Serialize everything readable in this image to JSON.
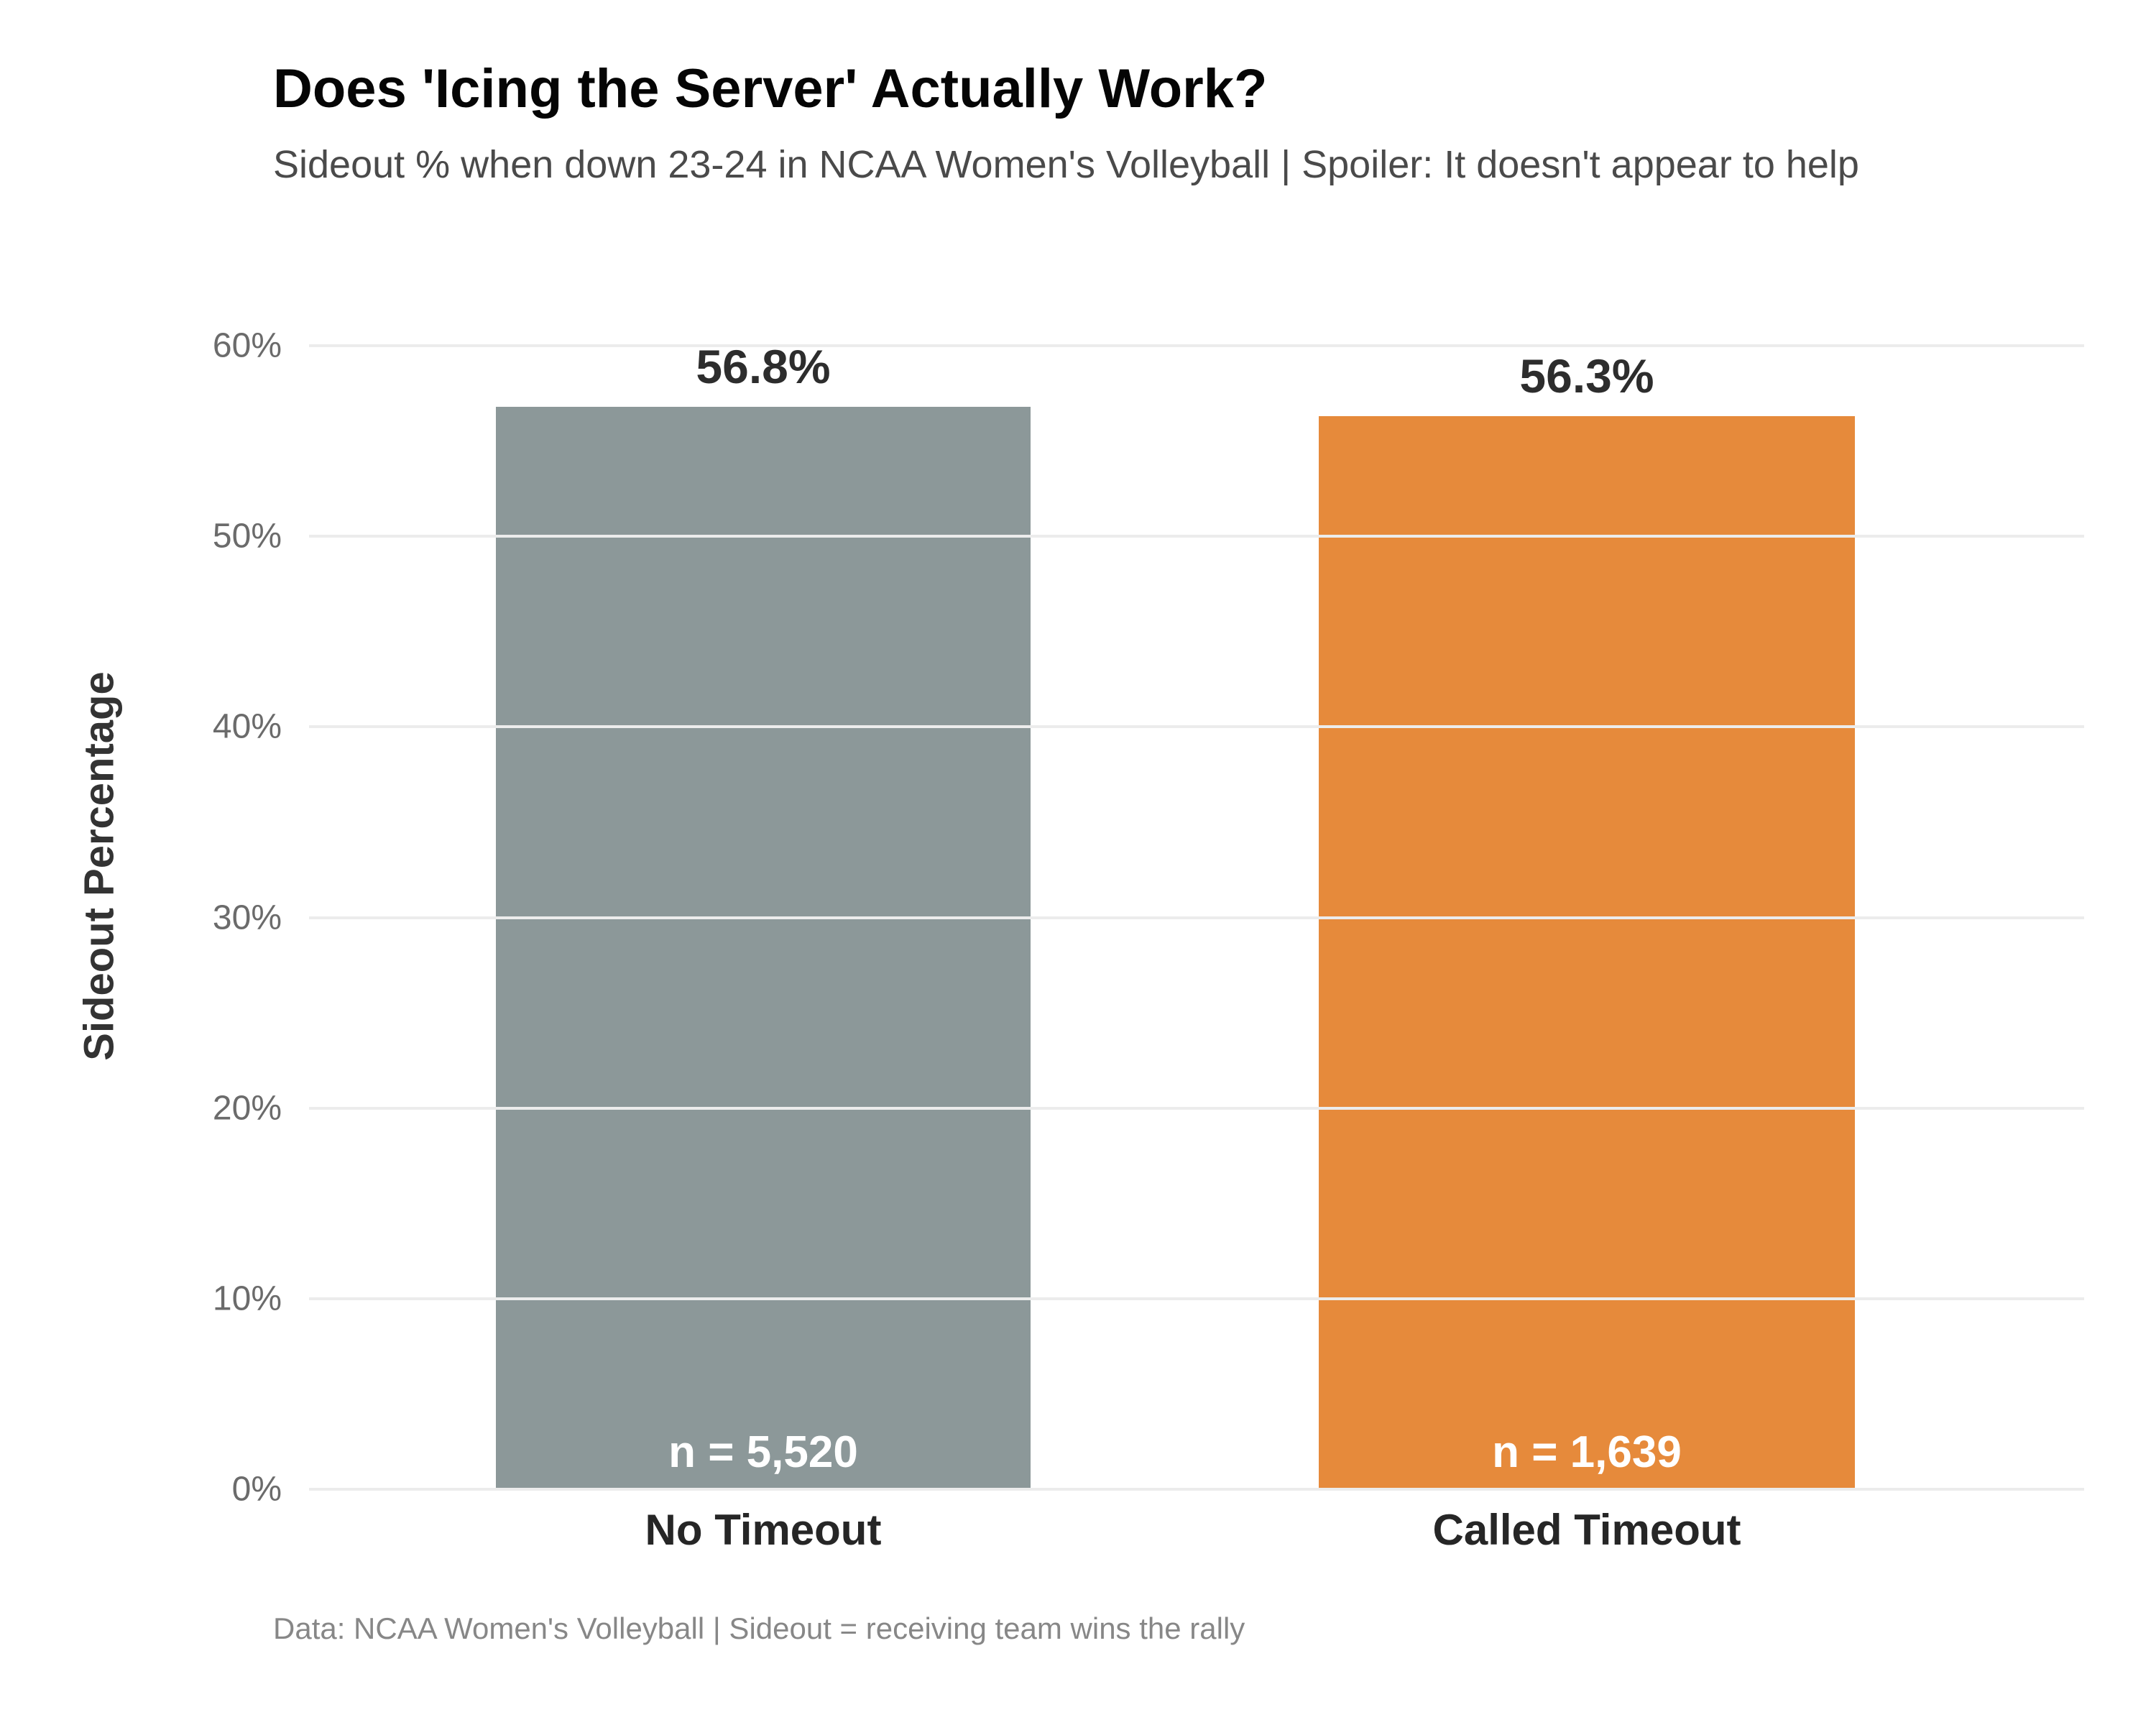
{
  "header": {
    "title": "Does 'Icing the Server' Actually Work?",
    "subtitle": "Sideout % when down 23-24 in NCAA Women's Volleyball | Spoiler: It doesn't appear to help"
  },
  "chart_data": {
    "type": "bar",
    "title": "Does 'Icing the Server' Actually Work?",
    "subtitle": "Sideout % when down 23-24 in NCAA Women's Volleyball | Spoiler: It doesn't appear to help",
    "categories": [
      "No Timeout",
      "Called Timeout"
    ],
    "values": [
      56.8,
      56.3
    ],
    "value_labels": [
      "56.8%",
      "56.3%"
    ],
    "sample_sizes": [
      5520,
      1639
    ],
    "n_labels": [
      "n = 5,520",
      "n = 1,639"
    ],
    "bar_colors": [
      "#8C9899",
      "#E68A3B"
    ],
    "xlabel": "",
    "ylabel": "Sideout Percentage",
    "ylim": [
      0,
      60
    ],
    "ytick_labels": [
      "0%",
      "10%",
      "20%",
      "30%",
      "40%",
      "50%",
      "60%"
    ],
    "ytick_values": [
      0,
      10,
      20,
      30,
      40,
      50,
      60
    ],
    "grid": "horizontal",
    "legend": "none",
    "label_text_color": "#2d2d2d",
    "grid_color": "#ececec"
  },
  "footer": {
    "text": "Data: NCAA Women's Volleyball | Sideout = receiving team wins the rally"
  }
}
